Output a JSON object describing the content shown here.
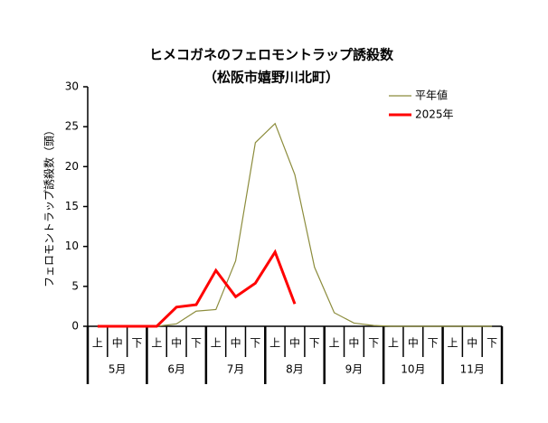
{
  "chart_data": {
    "type": "line",
    "title": "ヒメコガネのフェロモントラップ誘殺数",
    "subtitle": "（松阪市嬉野川北町）",
    "y_label": "フェロモントラップ誘殺数（頭）",
    "categories": [
      "上",
      "中",
      "下",
      "上",
      "中",
      "下",
      "上",
      "中",
      "下",
      "上",
      "中",
      "下",
      "上",
      "中",
      "下",
      "上",
      "中",
      "下",
      "上",
      "中",
      "下"
    ],
    "months": [
      "5月",
      "6月",
      "7月",
      "8月",
      "9月",
      "10月",
      "11月"
    ],
    "series": [
      {
        "name": "平年値",
        "color": "#8c8c3c",
        "width": 1.2,
        "values": [
          0,
          0,
          0,
          0,
          0.3,
          1.9,
          2.1,
          8.2,
          23,
          25.4,
          19,
          7.4,
          1.7,
          0.4,
          0.1,
          0,
          0,
          0,
          0,
          0,
          0
        ]
      },
      {
        "name": "2025年",
        "color": "#ff0000",
        "width": 3,
        "values": [
          0,
          0,
          0,
          0,
          2.4,
          2.7,
          7,
          3.7,
          5.4,
          9.3,
          2.8,
          null,
          null,
          null,
          null,
          null,
          null,
          null,
          null,
          null,
          null
        ]
      }
    ],
    "ylim": [
      0,
      30
    ],
    "yticks": [
      0,
      5,
      10,
      15,
      20,
      25,
      30
    ]
  }
}
